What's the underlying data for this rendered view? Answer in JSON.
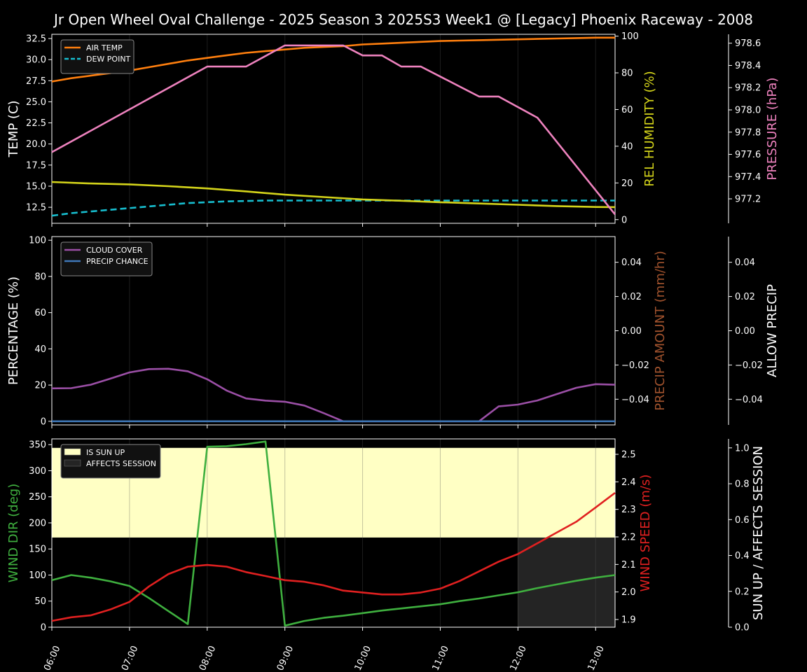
{
  "title": "Jr Open Wheel Oval Challenge - 2025 Season 3 2025S3 Week1 @ [Legacy] Phoenix Raceway - 2008",
  "x_ticks": [
    "06:00",
    "07:00",
    "08:00",
    "09:00",
    "10:00",
    "11:00",
    "12:00",
    "13:00"
  ],
  "colors": {
    "air_temp": "#ff7f0e",
    "dew_point": "#17becf",
    "humidity": "#d4d41a",
    "pressure": "#ee82be",
    "cloud_cover": "#9b4fa6",
    "precip_chance": "#3f78b8",
    "precip_amount_label": "#a0522d",
    "wind_dir": "#3fb03f",
    "wind_speed": "#e02020",
    "sun_up": "#ffffc4",
    "affects_session": "#242424"
  },
  "chart_data": [
    {
      "type": "line",
      "panel": "temperature",
      "ylabel_left": "TEMP (C)",
      "ylabel_right": "REL HUMIDITY (%)",
      "ylabel_far": "PRESSURE (hPa)",
      "ylim_left": [
        10.6,
        33.0
      ],
      "ylim_right": [
        -2,
        101
      ],
      "ylim_far": [
        976.98,
        978.68
      ],
      "xlim": [
        6.0,
        13.25
      ],
      "yticks_left": [
        "12.5",
        "15.0",
        "17.5",
        "20.0",
        "22.5",
        "25.0",
        "27.5",
        "30.0",
        "32.5"
      ],
      "yticks_right": [
        "0",
        "20",
        "40",
        "60",
        "80",
        "100"
      ],
      "yticks_far": [
        "977.2",
        "977.4",
        "977.6",
        "977.8",
        "978.0",
        "978.2",
        "978.4",
        "978.6"
      ],
      "legend": [
        "AIR TEMP",
        "DEW POINT"
      ],
      "legend_position": "upper-left",
      "series": [
        {
          "name": "AIR TEMP",
          "axis": "left",
          "style": "solid",
          "x": [
            6.0,
            6.25,
            6.5,
            6.75,
            7.0,
            7.25,
            7.5,
            7.75,
            8.0,
            8.25,
            8.5,
            8.75,
            9.0,
            9.25,
            9.5,
            9.75,
            10.0,
            10.25,
            10.5,
            10.75,
            11.0,
            11.25,
            11.5,
            11.75,
            12.0,
            12.25,
            12.5,
            12.75,
            13.0,
            13.25
          ],
          "y": [
            27.4,
            27.8,
            28.1,
            28.4,
            28.7,
            29.1,
            29.5,
            29.9,
            30.2,
            30.5,
            30.8,
            31.0,
            31.2,
            31.4,
            31.5,
            31.6,
            31.8,
            31.9,
            32.0,
            32.1,
            32.2,
            32.25,
            32.3,
            32.35,
            32.4,
            32.45,
            32.5,
            32.55,
            32.6,
            32.6
          ]
        },
        {
          "name": "DEW POINT",
          "axis": "left",
          "style": "dashed",
          "x": [
            6.0,
            6.25,
            6.5,
            6.75,
            7.0,
            7.25,
            7.5,
            7.75,
            8.0,
            8.25,
            8.5,
            8.75,
            9.0,
            9.25,
            9.5,
            9.75,
            10.0,
            10.25,
            10.5,
            10.75,
            11.0,
            11.25,
            11.5,
            11.75,
            12.0,
            12.25,
            12.5,
            12.75,
            13.0,
            13.25
          ],
          "y": [
            11.5,
            11.8,
            12.0,
            12.2,
            12.4,
            12.6,
            12.8,
            13.0,
            13.1,
            13.2,
            13.25,
            13.3,
            13.3,
            13.3,
            13.3,
            13.3,
            13.3,
            13.3,
            13.3,
            13.3,
            13.3,
            13.3,
            13.3,
            13.3,
            13.3,
            13.3,
            13.3,
            13.3,
            13.3,
            13.3
          ]
        },
        {
          "name": "REL HUMIDITY",
          "axis": "right",
          "style": "solid",
          "x": [
            6.0,
            6.5,
            7.0,
            7.5,
            8.0,
            8.5,
            9.0,
            9.5,
            10.0,
            10.5,
            11.0,
            11.5,
            12.0,
            12.5,
            13.0,
            13.25
          ],
          "y": [
            20.5,
            19.7,
            19.2,
            18.2,
            17.0,
            15.4,
            13.6,
            12.3,
            11.0,
            10.3,
            9.5,
            8.8,
            8.1,
            7.4,
            6.9,
            6.8
          ]
        },
        {
          "name": "PRESSURE",
          "axis": "far",
          "style": "solid",
          "x": [
            6.0,
            8.0,
            8.5,
            9.0,
            9.75,
            10.0,
            10.25,
            10.5,
            10.75,
            11.5,
            11.75,
            12.25,
            13.25
          ],
          "y": [
            977.62,
            978.39,
            978.39,
            978.58,
            978.58,
            978.49,
            978.49,
            978.39,
            978.39,
            978.12,
            978.12,
            977.93,
            977.06
          ]
        }
      ]
    },
    {
      "type": "line",
      "panel": "precipitation",
      "ylabel_left": "PERCENTAGE (%)",
      "ylabel_right": "PRECIP AMOUNT (mm/hr)",
      "ylabel_far": "ALLOW PRECIP",
      "ylim_left": [
        -2,
        102
      ],
      "ylim_right": [
        -0.055,
        0.055
      ],
      "ylim_far": [
        -0.055,
        0.055
      ],
      "xlim": [
        6.0,
        13.25
      ],
      "yticks_left": [
        "0",
        "20",
        "40",
        "60",
        "80",
        "100"
      ],
      "yticks_right": [
        "−0.04",
        "−0.02",
        "0.00",
        "0.02",
        "0.04"
      ],
      "yticks_far": [
        "−0.04",
        "−0.02",
        "0.00",
        "0.02",
        "0.04"
      ],
      "legend": [
        "CLOUD COVER",
        "PRECIP CHANCE"
      ],
      "legend_position": "upper-left",
      "series": [
        {
          "name": "CLOUD COVER",
          "x": [
            6.0,
            6.25,
            6.5,
            6.75,
            7.0,
            7.25,
            7.5,
            7.75,
            8.0,
            8.25,
            8.5,
            8.75,
            9.0,
            9.25,
            9.5,
            9.75,
            10.0,
            11.0,
            11.5,
            11.75,
            12.0,
            12.25,
            12.5,
            12.75,
            13.0,
            13.25
          ],
          "y": [
            18.2,
            18.3,
            20.2,
            23.5,
            27.0,
            28.8,
            29.0,
            27.6,
            23.2,
            17.0,
            12.6,
            11.4,
            10.8,
            8.7,
            4.5,
            0,
            0,
            0,
            0,
            8.2,
            9.2,
            11.5,
            15.0,
            18.5,
            20.5,
            20.2
          ]
        },
        {
          "name": "PRECIP CHANCE",
          "x": [
            6.0,
            13.25
          ],
          "y": [
            0,
            0
          ]
        }
      ]
    },
    {
      "type": "line",
      "panel": "wind",
      "ylabel_left": "WIND DIR (deg)",
      "ylabel_right": "WIND SPEED (m/s)",
      "ylabel_far": "SUN UP / AFFECTS SESSION",
      "ylim_left": [
        0,
        361
      ],
      "ylim_right": [
        1.872,
        2.556
      ],
      "ylim_far": [
        0,
        1.05
      ],
      "xlim": [
        6.0,
        13.25
      ],
      "yticks_left": [
        "0",
        "50",
        "100",
        "150",
        "200",
        "250",
        "300",
        "350"
      ],
      "yticks_right": [
        "1.9",
        "2.0",
        "2.1",
        "2.2",
        "2.3",
        "2.4",
        "2.5"
      ],
      "yticks_far": [
        "0.0",
        "0.2",
        "0.4",
        "0.6",
        "0.8",
        "1.0"
      ],
      "legend": [
        "IS SUN UP",
        "AFFECTS SESSION"
      ],
      "legend_position": "upper-left",
      "series": [
        {
          "name": "WIND DIR",
          "axis": "left",
          "x": [
            6.0,
            6.25,
            6.5,
            6.75,
            7.0,
            7.25,
            7.5,
            7.75,
            8.0,
            8.25,
            8.5,
            8.75,
            9.0,
            9.25,
            9.5,
            9.75,
            10.0,
            10.25,
            10.5,
            10.75,
            11.0,
            11.25,
            11.5,
            11.75,
            12.0,
            12.25,
            12.5,
            12.75,
            13.0,
            13.25
          ],
          "y": [
            90,
            100,
            95,
            88,
            79,
            56,
            31,
            6,
            346,
            347,
            351,
            356,
            3,
            12,
            18,
            22,
            27,
            32,
            36,
            40,
            44,
            50,
            55,
            61,
            67,
            75,
            82,
            89,
            95,
            100
          ]
        },
        {
          "name": "WIND SPEED",
          "axis": "right",
          "x": [
            6.0,
            6.25,
            6.5,
            6.75,
            7.0,
            7.25,
            7.5,
            7.75,
            8.0,
            8.25,
            8.5,
            8.75,
            9.0,
            9.25,
            9.5,
            9.75,
            10.0,
            10.25,
            10.5,
            10.75,
            11.0,
            11.25,
            11.5,
            11.75,
            12.0,
            12.25,
            12.5,
            12.75,
            13.0,
            13.25
          ],
          "y": [
            1.895,
            1.908,
            1.915,
            1.936,
            1.964,
            2.02,
            2.065,
            2.092,
            2.098,
            2.092,
            2.072,
            2.058,
            2.043,
            2.037,
            2.024,
            2.005,
            1.998,
            1.991,
            1.991,
            1.998,
            2.012,
            2.04,
            2.075,
            2.11,
            2.138,
            2.177,
            2.216,
            2.255,
            2.307,
            2.36
          ]
        },
        {
          "name": "IS SUN UP",
          "axis": "far",
          "kind": "band",
          "x": [
            6.0,
            13.25
          ],
          "y": [
            1,
            1
          ]
        },
        {
          "name": "AFFECTS SESSION",
          "axis": "far",
          "kind": "band",
          "x": [
            12.0,
            13.25
          ],
          "y": [
            0.5,
            0.5
          ]
        }
      ]
    }
  ]
}
